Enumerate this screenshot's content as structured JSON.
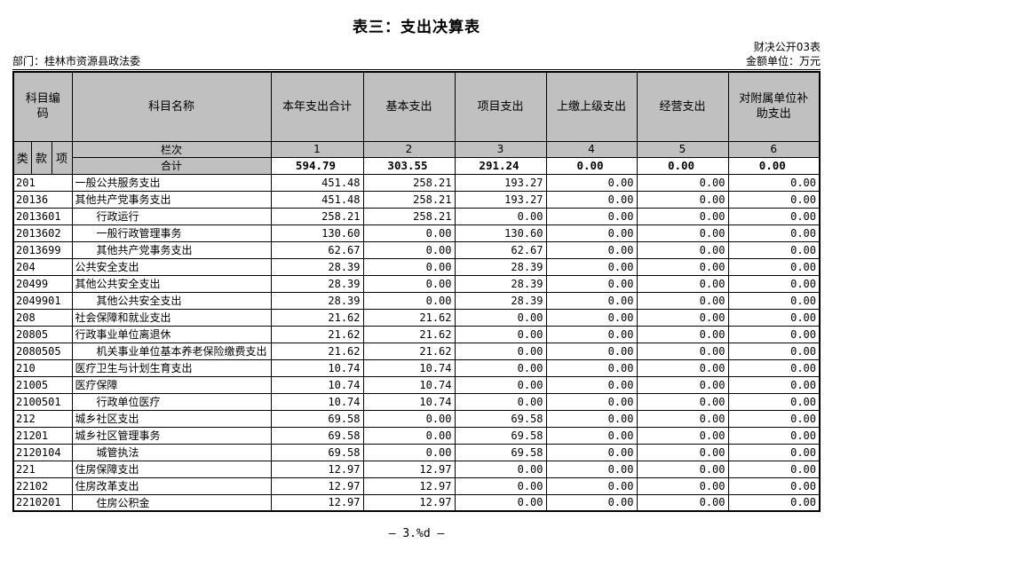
{
  "title": "表三：支出决算表",
  "doc_code": "财决公开03表",
  "meta": {
    "department": "部门：桂林市资源县政法委",
    "unit": "金额单位：万元"
  },
  "footer": "— 3.%d —",
  "colors": {
    "header_bg": "#c0c0c0",
    "border": "#000000",
    "page_bg": "#ffffff"
  },
  "table": {
    "header": {
      "code": "科目编码",
      "name": "科目名称",
      "cols": [
        "本年支出合计",
        "基本支出",
        "项目支出",
        "上缴上级支出",
        "经营支出",
        "对附属单位补助支出"
      ],
      "sub": [
        "类",
        "款",
        "项"
      ],
      "lanci_label": "栏次",
      "lanci_nums": [
        "1",
        "2",
        "3",
        "4",
        "5",
        "6"
      ],
      "total_label": "合计",
      "total_values": [
        "594.79",
        "303.55",
        "291.24",
        "0.00",
        "0.00",
        "0.00"
      ]
    },
    "rows": [
      {
        "code": "201",
        "name": "一般公共服务支出",
        "indent": false,
        "values": [
          "451.48",
          "258.21",
          "193.27",
          "0.00",
          "0.00",
          "0.00"
        ]
      },
      {
        "code": "20136",
        "name": "其他共产党事务支出",
        "indent": false,
        "values": [
          "451.48",
          "258.21",
          "193.27",
          "0.00",
          "0.00",
          "0.00"
        ]
      },
      {
        "code": "2013601",
        "name": "行政运行",
        "indent": true,
        "values": [
          "258.21",
          "258.21",
          "0.00",
          "0.00",
          "0.00",
          "0.00"
        ]
      },
      {
        "code": "2013602",
        "name": "一般行政管理事务",
        "indent": true,
        "values": [
          "130.60",
          "0.00",
          "130.60",
          "0.00",
          "0.00",
          "0.00"
        ]
      },
      {
        "code": "2013699",
        "name": "其他共产党事务支出",
        "indent": true,
        "values": [
          "62.67",
          "0.00",
          "62.67",
          "0.00",
          "0.00",
          "0.00"
        ]
      },
      {
        "code": "204",
        "name": "公共安全支出",
        "indent": false,
        "values": [
          "28.39",
          "0.00",
          "28.39",
          "0.00",
          "0.00",
          "0.00"
        ]
      },
      {
        "code": "20499",
        "name": "其他公共安全支出",
        "indent": false,
        "values": [
          "28.39",
          "0.00",
          "28.39",
          "0.00",
          "0.00",
          "0.00"
        ]
      },
      {
        "code": "2049901",
        "name": "其他公共安全支出",
        "indent": true,
        "values": [
          "28.39",
          "0.00",
          "28.39",
          "0.00",
          "0.00",
          "0.00"
        ]
      },
      {
        "code": "208",
        "name": "社会保障和就业支出",
        "indent": false,
        "values": [
          "21.62",
          "21.62",
          "0.00",
          "0.00",
          "0.00",
          "0.00"
        ]
      },
      {
        "code": "20805",
        "name": "行政事业单位离退休",
        "indent": false,
        "values": [
          "21.62",
          "21.62",
          "0.00",
          "0.00",
          "0.00",
          "0.00"
        ]
      },
      {
        "code": "2080505",
        "name": "机关事业单位基本养老保险缴费支出",
        "indent": true,
        "values": [
          "21.62",
          "21.62",
          "0.00",
          "0.00",
          "0.00",
          "0.00"
        ]
      },
      {
        "code": "210",
        "name": "医疗卫生与计划生育支出",
        "indent": false,
        "values": [
          "10.74",
          "10.74",
          "0.00",
          "0.00",
          "0.00",
          "0.00"
        ]
      },
      {
        "code": "21005",
        "name": "医疗保障",
        "indent": false,
        "values": [
          "10.74",
          "10.74",
          "0.00",
          "0.00",
          "0.00",
          "0.00"
        ]
      },
      {
        "code": "2100501",
        "name": "行政单位医疗",
        "indent": true,
        "values": [
          "10.74",
          "10.74",
          "0.00",
          "0.00",
          "0.00",
          "0.00"
        ]
      },
      {
        "code": "212",
        "name": "城乡社区支出",
        "indent": false,
        "values": [
          "69.58",
          "0.00",
          "69.58",
          "0.00",
          "0.00",
          "0.00"
        ]
      },
      {
        "code": "21201",
        "name": "城乡社区管理事务",
        "indent": false,
        "values": [
          "69.58",
          "0.00",
          "69.58",
          "0.00",
          "0.00",
          "0.00"
        ]
      },
      {
        "code": "2120104",
        "name": "城管执法",
        "indent": true,
        "values": [
          "69.58",
          "0.00",
          "69.58",
          "0.00",
          "0.00",
          "0.00"
        ]
      },
      {
        "code": "221",
        "name": "住房保障支出",
        "indent": false,
        "values": [
          "12.97",
          "12.97",
          "0.00",
          "0.00",
          "0.00",
          "0.00"
        ]
      },
      {
        "code": "22102",
        "name": "住房改革支出",
        "indent": false,
        "values": [
          "12.97",
          "12.97",
          "0.00",
          "0.00",
          "0.00",
          "0.00"
        ]
      },
      {
        "code": "2210201",
        "name": "住房公积金",
        "indent": true,
        "values": [
          "12.97",
          "12.97",
          "0.00",
          "0.00",
          "0.00",
          "0.00"
        ]
      }
    ]
  }
}
